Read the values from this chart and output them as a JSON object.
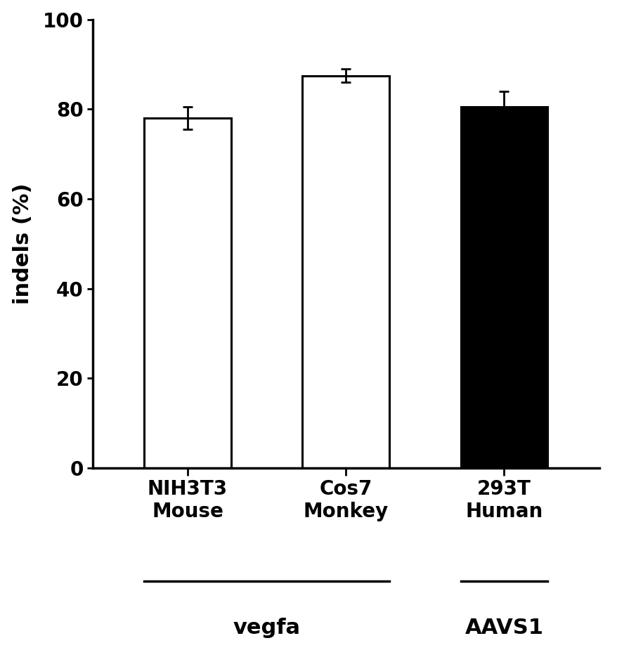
{
  "categories": [
    "NIH3T3\nMouse",
    "Cos7\nMonkey",
    "293T\nHuman"
  ],
  "values": [
    78.0,
    87.5,
    80.5
  ],
  "errors": [
    2.5,
    1.5,
    3.5
  ],
  "bar_colors": [
    "white",
    "white",
    "black"
  ],
  "bar_edge_colors": [
    "black",
    "black",
    "black"
  ],
  "ylabel": "indels (%)",
  "ylim": [
    0,
    100
  ],
  "yticks": [
    0,
    20,
    40,
    60,
    80,
    100
  ],
  "group_labels": [
    "vegfa",
    "AAVS1"
  ],
  "background_color": "white",
  "bar_width": 0.55,
  "ylabel_fontsize": 22,
  "tick_fontsize": 20,
  "group_label_fontsize": 22,
  "category_fontsize": 20
}
